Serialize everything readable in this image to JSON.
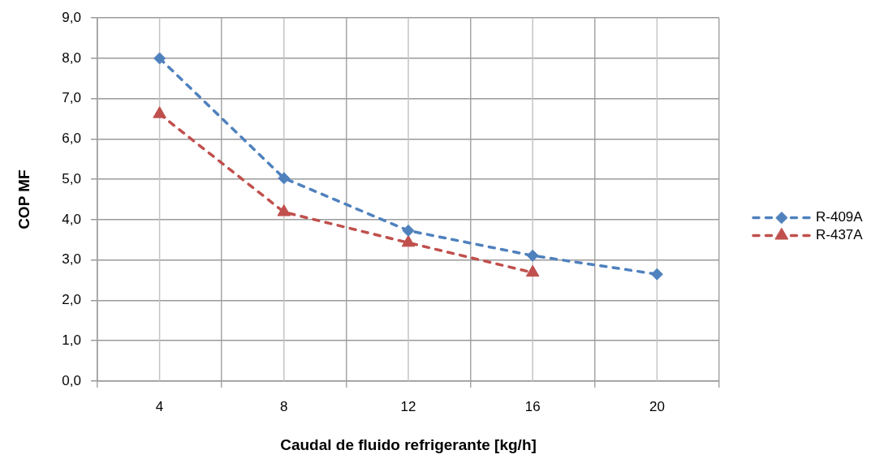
{
  "chart_data": {
    "type": "line",
    "xlabel": "Caudal de fluido refrigerante [kg/h]",
    "ylabel": "COP MF",
    "categories": [
      "4",
      "8",
      "12",
      "16",
      "20"
    ],
    "series": [
      {
        "name": "R-409A",
        "color": "#4f81bd",
        "marker": "diamond",
        "values": [
          8.0,
          5.03,
          3.73,
          3.11,
          2.65
        ]
      },
      {
        "name": "R-437A",
        "color": "#c0504d",
        "marker": "triangle",
        "values": [
          6.62,
          4.19,
          3.43,
          2.69,
          null
        ]
      }
    ],
    "ylim": [
      0,
      9
    ],
    "yticks": [
      {
        "value": 0,
        "label": "0,0"
      },
      {
        "value": 1,
        "label": "1,0"
      },
      {
        "value": 2,
        "label": "2,0"
      },
      {
        "value": 3,
        "label": "3,0"
      },
      {
        "value": 4,
        "label": "4,0"
      },
      {
        "value": 5,
        "label": "5,0"
      },
      {
        "value": 6,
        "label": "6,0"
      },
      {
        "value": 7,
        "label": "7,0"
      },
      {
        "value": 8,
        "label": "8,0"
      },
      {
        "value": 9,
        "label": "9,0"
      }
    ],
    "grid": true,
    "legend": "right",
    "line_style": "dashed"
  }
}
